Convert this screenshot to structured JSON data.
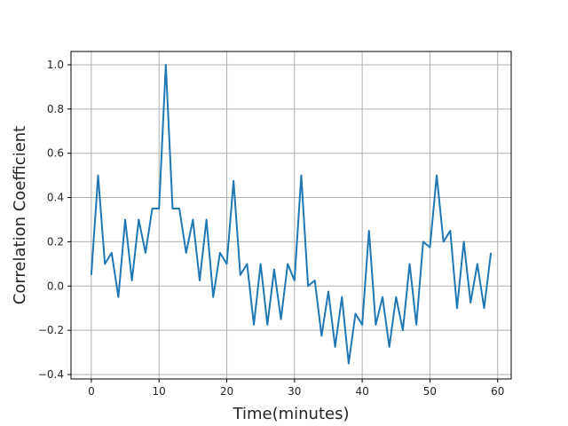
{
  "chart_data": {
    "type": "line",
    "title": "",
    "xlabel": "Time(minutes)",
    "ylabel": "Correlation Coefficient",
    "xlim": [
      -3,
      62
    ],
    "ylim": [
      -0.42,
      1.06
    ],
    "xticks": [
      0,
      10,
      20,
      30,
      40,
      50,
      60
    ],
    "xtick_labels": [
      "0",
      "10",
      "20",
      "30",
      "40",
      "50",
      "60"
    ],
    "yticks": [
      -0.4,
      -0.2,
      0.0,
      0.2,
      0.4,
      0.6,
      0.8,
      1.0
    ],
    "ytick_labels": [
      "−0.4",
      "−0.2",
      "0.0",
      "0.2",
      "0.4",
      "0.6",
      "0.8",
      "1.0"
    ],
    "grid": true,
    "legend": "none",
    "color": "#1f77b4",
    "x": [
      0,
      1,
      2,
      3,
      4,
      5,
      6,
      7,
      8,
      9,
      10,
      11,
      12,
      13,
      14,
      15,
      16,
      17,
      18,
      19,
      20,
      21,
      22,
      23,
      24,
      25,
      26,
      27,
      28,
      29,
      30,
      31,
      32,
      33,
      34,
      35,
      36,
      37,
      38,
      39,
      40,
      41,
      42,
      43,
      44,
      45,
      46,
      47,
      48,
      49,
      50,
      51,
      52,
      53,
      54,
      55,
      56,
      57,
      58,
      59
    ],
    "y": [
      0.05,
      0.5,
      0.1,
      0.15,
      -0.05,
      0.3,
      0.025,
      0.3,
      0.15,
      0.35,
      0.35,
      1.0,
      0.35,
      0.35,
      0.15,
      0.3,
      0.025,
      0.3,
      -0.05,
      0.15,
      0.1,
      0.475,
      0.05,
      0.1,
      -0.175,
      0.1,
      -0.175,
      0.075,
      -0.15,
      0.1,
      0.025,
      0.5,
      0.0,
      0.025,
      -0.225,
      -0.025,
      -0.275,
      -0.05,
      -0.35,
      -0.125,
      -0.175,
      0.25,
      -0.175,
      -0.05,
      -0.275,
      -0.05,
      -0.2,
      0.1,
      -0.175,
      0.2,
      0.175,
      0.5,
      0.2,
      0.25,
      -0.1,
      0.2,
      -0.075,
      0.1,
      -0.1,
      0.15
    ]
  }
}
